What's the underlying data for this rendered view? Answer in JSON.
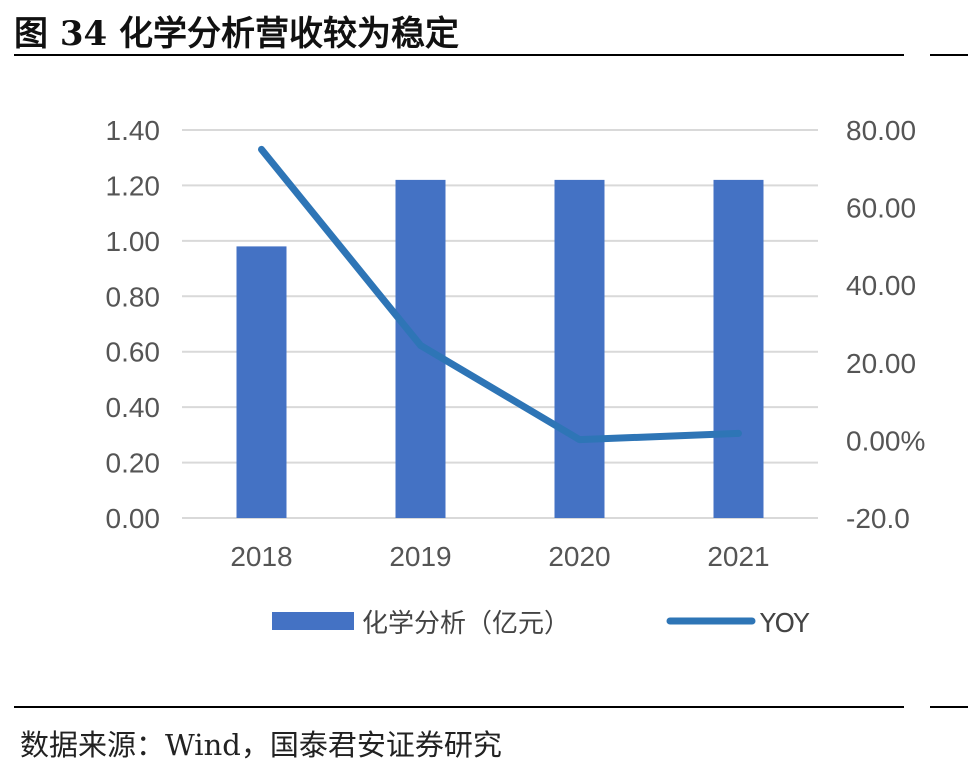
{
  "title": "图 34 化学分析营收较为稳定",
  "source": "数据来源：Wind，国泰君安证券研究",
  "colors": {
    "bar": "#4472C4",
    "line": "#2E75B6",
    "grid": "#D9D9D9",
    "text": "#555555"
  },
  "chart_data": {
    "type": "bar",
    "categories": [
      "2018",
      "2019",
      "2020",
      "2021"
    ],
    "series": [
      {
        "name": "化学分析（亿元）",
        "type": "bar",
        "axis": "left",
        "values": [
          0.98,
          1.22,
          1.22,
          1.22
        ]
      },
      {
        "name": "YOY",
        "type": "line",
        "axis": "right",
        "values": [
          75.0,
          24.5,
          0.2,
          1.8
        ]
      }
    ],
    "y_left": {
      "min": 0,
      "max": 1.4,
      "ticks": [
        "0.00",
        "0.20",
        "0.40",
        "0.60",
        "0.80",
        "1.00",
        "1.20",
        "1.40"
      ]
    },
    "y_right": {
      "min": -20,
      "max": 80,
      "ticks": [
        "-20.0",
        "0.00%",
        "20.00",
        "40.00",
        "60.00",
        "80.00"
      ]
    },
    "grid": true,
    "legend": "bottom"
  }
}
